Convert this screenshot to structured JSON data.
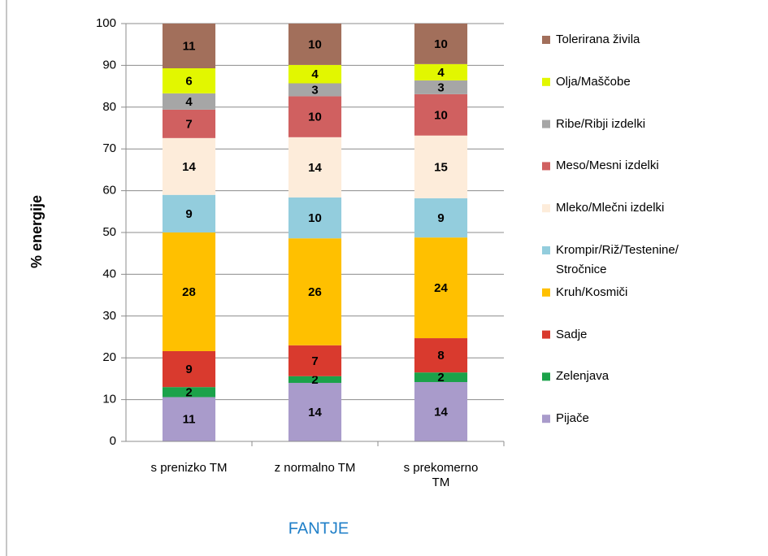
{
  "chart_data": {
    "type": "stacked_bar",
    "x_label": "FANTJE",
    "y_label": "% energije",
    "categories": [
      "s prenizko TM",
      "z normalno TM",
      "s prekomerno TM"
    ],
    "ylim": [
      0,
      100
    ],
    "yticks": [
      0,
      10,
      20,
      30,
      40,
      50,
      60,
      70,
      80,
      90,
      100
    ],
    "grid": true,
    "legend": "right",
    "series": [
      {
        "name": "Pijače",
        "color": "#a99bcb",
        "values": [
          10.6,
          14.0,
          14.2
        ],
        "value_labels": [
          "11",
          "14",
          "14"
        ]
      },
      {
        "name": "Zelenjava",
        "color": "#1ba24a",
        "values": [
          2.4,
          1.6,
          2.3
        ],
        "value_labels": [
          "2",
          "2",
          "2"
        ]
      },
      {
        "name": "Sadje",
        "color": "#d93a2e",
        "values": [
          8.6,
          7.4,
          8.2
        ],
        "value_labels": [
          "9",
          "7",
          "8"
        ]
      },
      {
        "name": "Kruh/Kosmiči",
        "color": "#ffc000",
        "values": [
          28.4,
          25.6,
          24.1
        ],
        "value_labels": [
          "28",
          "26",
          "24"
        ]
      },
      {
        "name": "Krompir/Riž/Testenine/ Stročnice",
        "color": "#93cddd",
        "values": [
          9.0,
          9.8,
          9.4
        ],
        "value_labels": [
          "9",
          "10",
          "9"
        ]
      },
      {
        "name": "Mleko/Mlečni izdelki",
        "color": "#fdecda",
        "values": [
          13.6,
          14.4,
          15.0
        ],
        "value_labels": [
          "14",
          "14",
          "15"
        ]
      },
      {
        "name": "Meso/Mesni izdelki",
        "color": "#d06060",
        "values": [
          6.8,
          9.8,
          9.9
        ],
        "value_labels": [
          "7",
          "10",
          "10"
        ]
      },
      {
        "name": "Ribe/Ribji izdelki",
        "color": "#a6a6a6",
        "values": [
          3.9,
          3.1,
          3.3
        ],
        "value_labels": [
          "4",
          "3",
          "3"
        ]
      },
      {
        "name": "Olja/Maščobe",
        "color": "#e2f700",
        "values": [
          6.0,
          4.4,
          3.9
        ],
        "value_labels": [
          "6",
          "4",
          "4"
        ]
      },
      {
        "name": "Tolerirana živila",
        "color": "#a26f5b",
        "values": [
          10.7,
          9.9,
          9.7
        ],
        "value_labels": [
          "11",
          "10",
          "10"
        ]
      }
    ]
  }
}
